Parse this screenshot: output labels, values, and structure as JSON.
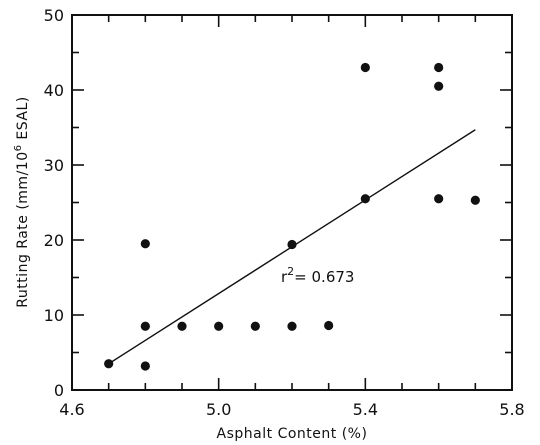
{
  "chart_data": {
    "type": "scatter",
    "xlabel": "Asphalt Content (%)",
    "ylabel_main": "Rutting Rate (mm/10",
    "ylabel_sup": "6",
    "ylabel_tail": " ESAL)",
    "xlim": [
      4.6,
      5.8
    ],
    "ylim": [
      0,
      50
    ],
    "x_ticks": [
      4.6,
      5.0,
      5.4,
      5.8
    ],
    "x_tick_labels": [
      "4.6",
      "5.0",
      "5.4",
      "5.8"
    ],
    "x_minor_ticks": [
      4.7,
      4.8,
      4.9,
      5.1,
      5.2,
      5.3,
      5.5,
      5.6,
      5.7
    ],
    "y_ticks": [
      0,
      10,
      20,
      30,
      40,
      50
    ],
    "y_tick_labels": [
      "0",
      "10",
      "20",
      "30",
      "40",
      "50"
    ],
    "y_minor_ticks": [
      5,
      15,
      25,
      35,
      45
    ],
    "grid": false,
    "points": [
      {
        "x": 4.7,
        "y": 3.5
      },
      {
        "x": 4.8,
        "y": 3.2
      },
      {
        "x": 4.8,
        "y": 8.5
      },
      {
        "x": 4.8,
        "y": 19.5
      },
      {
        "x": 4.9,
        "y": 8.5
      },
      {
        "x": 5.0,
        "y": 8.5
      },
      {
        "x": 5.1,
        "y": 8.5
      },
      {
        "x": 5.2,
        "y": 8.5
      },
      {
        "x": 5.2,
        "y": 19.4
      },
      {
        "x": 5.3,
        "y": 8.6
      },
      {
        "x": 5.4,
        "y": 25.5
      },
      {
        "x": 5.4,
        "y": 43.0
      },
      {
        "x": 5.6,
        "y": 25.5
      },
      {
        "x": 5.6,
        "y": 40.5
      },
      {
        "x": 5.6,
        "y": 43.0
      },
      {
        "x": 5.7,
        "y": 25.3
      }
    ],
    "fit_line": {
      "x": [
        4.7,
        5.7
      ],
      "y": [
        3.5,
        34.7
      ]
    },
    "annotation": {
      "prefix": "r",
      "sup": "2",
      "suffix": "= 0.673",
      "x": 5.17,
      "y": 14.4
    }
  }
}
